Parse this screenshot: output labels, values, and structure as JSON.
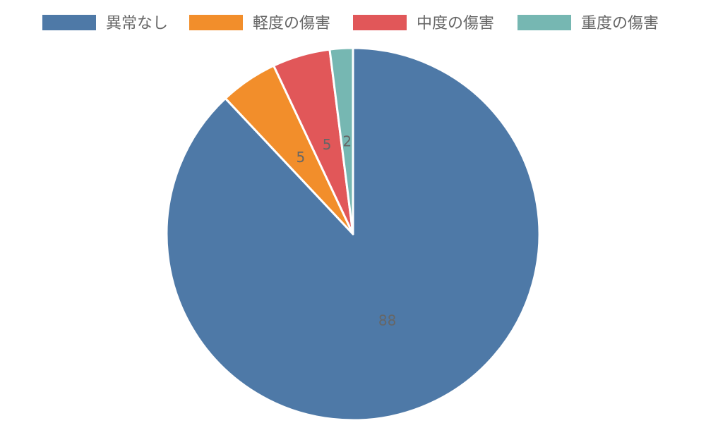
{
  "chart_data": {
    "type": "pie",
    "categories": [
      "異常なし",
      "軽度の傷害",
      "中度の傷害",
      "重度の傷害"
    ],
    "values": [
      88,
      5,
      5,
      2
    ],
    "colors": [
      "#4e79a7",
      "#f28e2b",
      "#e15759",
      "#76b7b2"
    ],
    "start_angle": "12 o'clock",
    "direction": "clockwise",
    "legend": "top",
    "data_labels": true
  }
}
